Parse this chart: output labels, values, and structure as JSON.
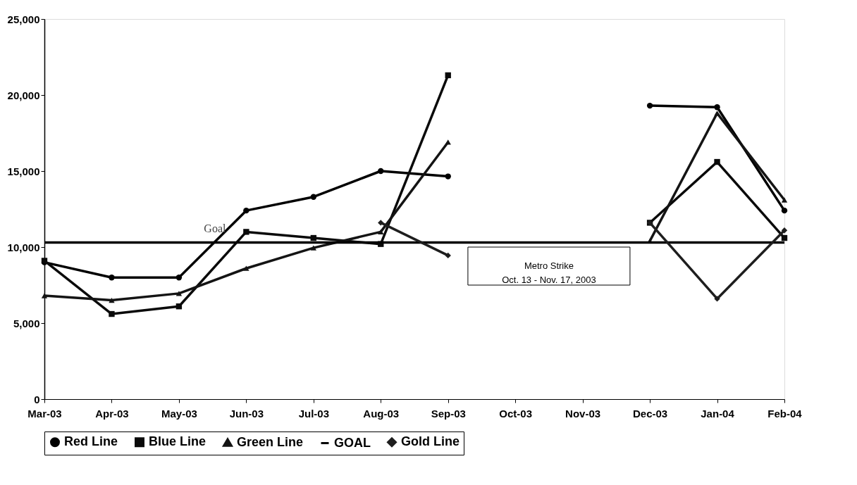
{
  "chart_data": {
    "type": "line",
    "categories": [
      "Mar-03",
      "Apr-03",
      "May-03",
      "Jun-03",
      "Jul-03",
      "Aug-03",
      "Sep-03",
      "Oct-03",
      "Nov-03",
      "Dec-03",
      "Jan-04",
      "Feb-04"
    ],
    "series": [
      {
        "name": "Red Line",
        "color": "#000000",
        "marker": "circle",
        "values": [
          9000,
          8000,
          8000,
          12400,
          13300,
          15000,
          14650,
          null,
          null,
          19300,
          19200,
          12400
        ]
      },
      {
        "name": "Blue Line",
        "color": "#0a0a0a",
        "marker": "square",
        "values": [
          9100,
          5600,
          6100,
          11000,
          10600,
          10200,
          21300,
          null,
          null,
          11600,
          15600,
          10600
        ]
      },
      {
        "name": "Green Line",
        "color": "#141414",
        "marker": "triangle",
        "values": [
          6800,
          6500,
          6950,
          8600,
          9950,
          11000,
          16900,
          null,
          null,
          10400,
          18800,
          13100
        ]
      },
      {
        "name": "GOAL",
        "color": "#000000",
        "marker": "none",
        "values": [
          10300,
          10300,
          10300,
          10300,
          10300,
          10300,
          10300,
          10300,
          10300,
          10300,
          10300,
          10300
        ]
      },
      {
        "name": "Gold Line",
        "color": "#1e1e1e",
        "marker": "diamond",
        "values": [
          null,
          null,
          null,
          null,
          null,
          11600,
          9450,
          null,
          null,
          11600,
          6600,
          11100
        ]
      }
    ],
    "ylim": [
      0,
      25000
    ],
    "yticks": [
      0,
      {
        "value": 5000,
        "label": "5,000"
      },
      {
        "value": 10000,
        "label": "10,000"
      },
      {
        "value": 15000,
        "label": "15,000"
      },
      {
        "value": 20000,
        "label": "20,000"
      },
      {
        "value": 25000,
        "label": "25,000"
      }
    ],
    "grid": false,
    "legend": "bottom",
    "annotations": [
      {
        "text": "Goal",
        "x": "Jun-03",
        "y": 10300
      },
      "Metro Strike\nOct. 13 - Nov. 17, 2003"
    ]
  }
}
